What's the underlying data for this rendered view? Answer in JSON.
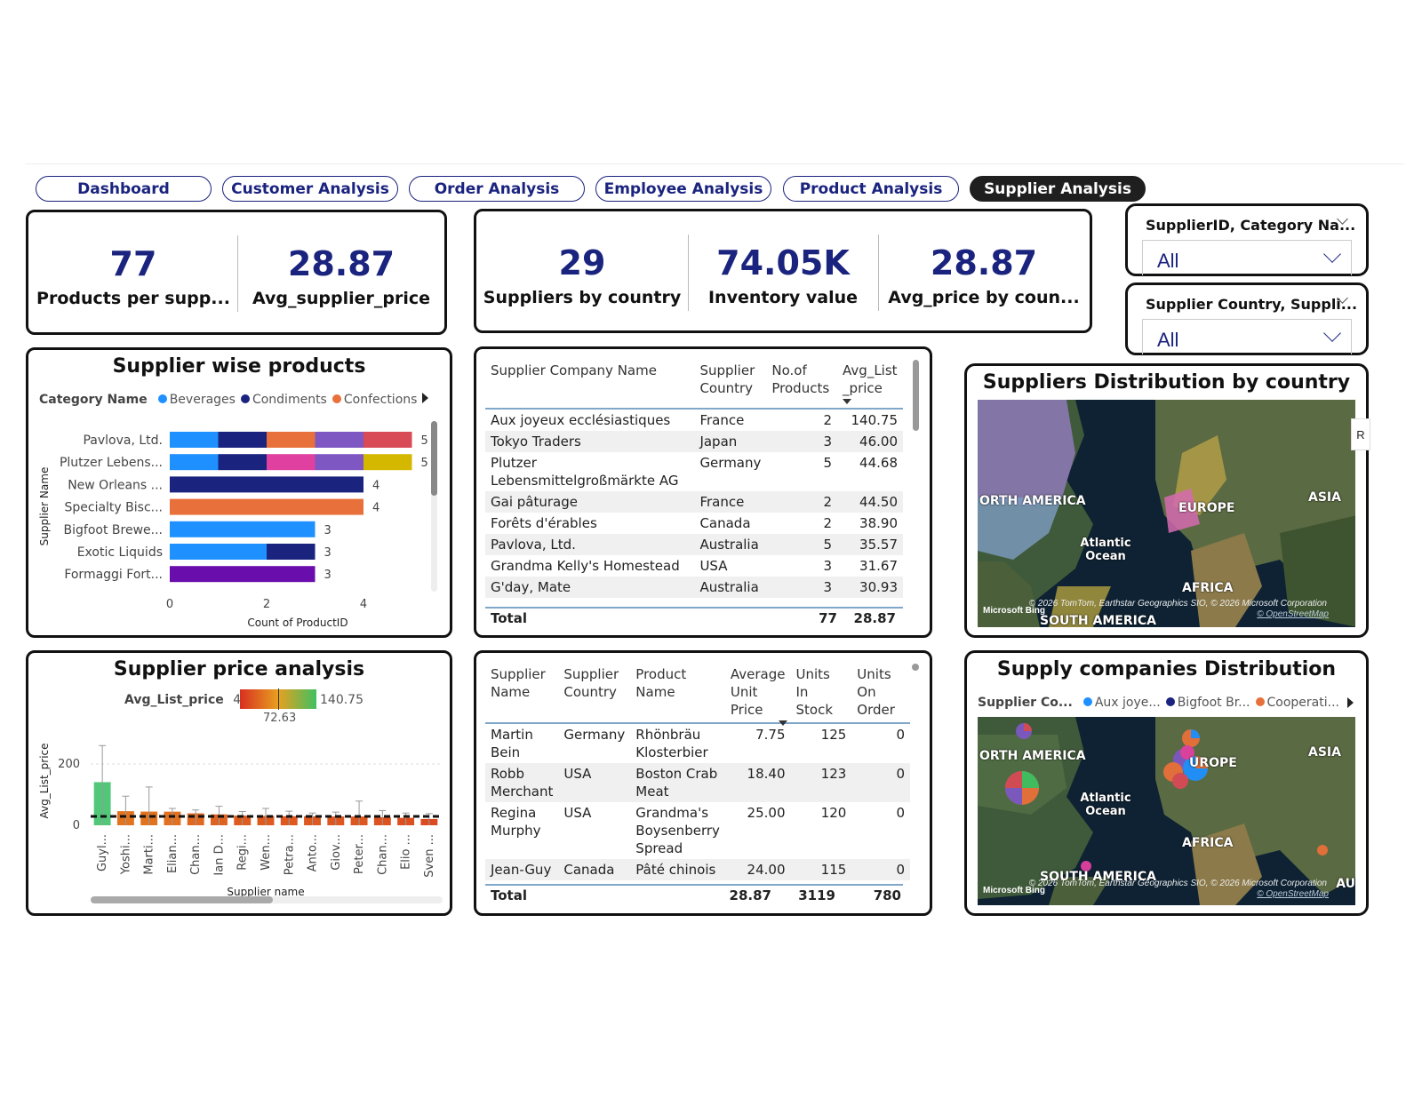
{
  "nav": {
    "tabs": [
      {
        "label": "Dashboard"
      },
      {
        "label": "Customer Analysis"
      },
      {
        "label": "Order Analysis"
      },
      {
        "label": "Employee Analysis"
      },
      {
        "label": "Product Analysis"
      },
      {
        "label": "Supplier Analysis"
      }
    ],
    "active": "Supplier Analysis"
  },
  "kpis_left": [
    {
      "value": "77",
      "label": "Products per supp..."
    },
    {
      "value": "28.87",
      "label": "Avg_supplier_price"
    }
  ],
  "kpis_mid": [
    {
      "value": "29",
      "label": "Suppliers by country"
    },
    {
      "value": "74.05K",
      "label": "Inventory value"
    },
    {
      "value": "28.87",
      "label": "Avg_price by coun..."
    }
  ],
  "slicers": [
    {
      "title": "SupplierID, Category Na...",
      "value": "All"
    },
    {
      "title": "Supplier Country, Suppli...",
      "value": "All"
    }
  ],
  "supplier_products": {
    "title": "Supplier wise products",
    "legend_title": "Category Name",
    "legend": [
      {
        "name": "Beverages",
        "color": "#1e90ff"
      },
      {
        "name": "Condiments",
        "color": "#1a237e"
      },
      {
        "name": "Confections",
        "color": "#e8703a"
      }
    ],
    "y_axis_label": "Supplier Name",
    "x_axis_label": "Count of ProductID"
  },
  "price_analysis": {
    "title": "Supplier price analysis",
    "gradient_label": "Avg_List_price",
    "gradient_min": "4.50",
    "gradient_max": "140.75",
    "gradient_mid": "72.63",
    "y_axis_label": "Avg_List_price",
    "x_axis_label": "Supplier name"
  },
  "supplier_table": {
    "headers": [
      "Supplier Company Name",
      "Supplier Country",
      "No.of Products",
      "Avg_List _price"
    ],
    "rows": [
      [
        "Aux joyeux ecclésiastiques",
        "France",
        "2",
        "140.75"
      ],
      [
        "Tokyo Traders",
        "Japan",
        "3",
        "46.00"
      ],
      [
        "Plutzer Lebensmittelgroßmärkte AG",
        "Germany",
        "5",
        "44.68"
      ],
      [
        "Gai pâturage",
        "France",
        "2",
        "44.50"
      ],
      [
        "Forêts d'érables",
        "Canada",
        "2",
        "38.90"
      ],
      [
        "Pavlova, Ltd.",
        "Australia",
        "5",
        "35.57"
      ],
      [
        "Grandma Kelly's Homestead",
        "USA",
        "3",
        "31.67"
      ],
      [
        "G'day, Mate",
        "Australia",
        "3",
        "30.93"
      ]
    ],
    "total_label": "Total",
    "total_products": "77",
    "total_avg": "28.87"
  },
  "product_table": {
    "headers": [
      "Supplier Name",
      "Supplier Country",
      "Product Name",
      "Average Unit Price",
      "Units In Stock",
      "Units On Order"
    ],
    "rows": [
      [
        "Martin Bein",
        "Germany",
        "Rhönbräu Klosterbier",
        "7.75",
        "125",
        "0"
      ],
      [
        "Robb Merchant",
        "USA",
        "Boston Crab Meat",
        "18.40",
        "123",
        "0"
      ],
      [
        "Regina Murphy",
        "USA",
        "Grandma's Boysenberry Spread",
        "25.00",
        "120",
        "0"
      ],
      [
        "Jean-Guy",
        "Canada",
        "Pâté chinois",
        "24.00",
        "115",
        "0"
      ]
    ],
    "total_label": "Total",
    "total_price": "28.87",
    "total_stock": "3119",
    "total_order": "780"
  },
  "map1": {
    "title": "Suppliers Distribution by country",
    "labels": {
      "na": "ORTH AMERICA",
      "europe": "EUROPE",
      "asia": "ASIA",
      "atlantic": "Atlantic Ocean",
      "africa": "AFRICA",
      "sa": "SOUTH AMERICA"
    },
    "credits": "© 2026 TomTom, Earthstar Geographics SIO, © 2026 Microsoft Corporation",
    "osm": "© OpenStreetMap",
    "bing": "Microsoft Bing",
    "side_tab": "R"
  },
  "map2": {
    "title": "Supply companies Distribution",
    "legend_title": "Supplier Co...",
    "legend": [
      {
        "name": "Aux joye...",
        "color": "#1e90ff"
      },
      {
        "name": "Bigfoot Br...",
        "color": "#1a237e"
      },
      {
        "name": "Cooperati...",
        "color": "#e8703a"
      }
    ],
    "labels": {
      "na": "ORTH AMERICA",
      "europe": "UROPE",
      "asia": "ASIA",
      "atlantic": "Atlantic Ocean",
      "africa": "AFRICA",
      "sa": "SOUTH AMERICA",
      "au": "AU"
    },
    "credits": "© 2026 TomTom, Earthstar Geographics SIO, © 2026 Microsoft Corporation",
    "osm": "© OpenStreetMap",
    "bing": "Microsoft Bing"
  },
  "chart_data": [
    {
      "type": "bar",
      "orientation": "horizontal-stacked",
      "title": "Supplier wise products",
      "xlabel": "Count of ProductID",
      "ylabel": "Supplier Name",
      "xlim": [
        0,
        5
      ],
      "x_ticks": [
        "0",
        "2",
        "4"
      ],
      "categories": [
        "Pavlova, Ltd.",
        "Plutzer Lebens...",
        "New Orleans ...",
        "Specialty Bisc...",
        "Bigfoot Brewe...",
        "Exotic Liquids",
        "Formaggi Fort..."
      ],
      "totals": [
        5,
        5,
        4,
        4,
        3,
        3,
        3
      ],
      "segments": [
        [
          {
            "v": 1,
            "c": "#1e90ff"
          },
          {
            "v": 1,
            "c": "#1a237e"
          },
          {
            "v": 1,
            "c": "#e8703a"
          },
          {
            "v": 1,
            "c": "#7e57c2"
          },
          {
            "v": 1,
            "c": "#d84a55"
          }
        ],
        [
          {
            "v": 1,
            "c": "#1e90ff"
          },
          {
            "v": 1,
            "c": "#1a237e"
          },
          {
            "v": 1,
            "c": "#e040a0"
          },
          {
            "v": 1,
            "c": "#7e57c2"
          },
          {
            "v": 1,
            "c": "#d4b800"
          }
        ],
        [
          {
            "v": 4,
            "c": "#1a237e"
          }
        ],
        [
          {
            "v": 4,
            "c": "#e8703a"
          }
        ],
        [
          {
            "v": 3,
            "c": "#1e90ff"
          }
        ],
        [
          {
            "v": 2,
            "c": "#1e90ff"
          },
          {
            "v": 1,
            "c": "#1a237e"
          }
        ],
        [
          {
            "v": 3,
            "c": "#6a0dad"
          }
        ]
      ]
    },
    {
      "type": "bar",
      "title": "Supplier price analysis",
      "xlabel": "Supplier name",
      "ylabel": "Avg_List_price",
      "ylim": [
        -20,
        300
      ],
      "y_ticks": [
        "0",
        "200"
      ],
      "reference_line": 28.87,
      "categories": [
        "Guyl...",
        "Yoshi...",
        "Marti...",
        "Elian...",
        "Chan...",
        "Ian D...",
        "Regi...",
        "Wen...",
        "Petra...",
        "Anto...",
        "Giov...",
        "Peter...",
        "Chan...",
        "Elio ...",
        "Sven ..."
      ],
      "values": [
        140.75,
        46,
        44.68,
        44.5,
        38.9,
        35.57,
        31.67,
        30.93,
        29.71,
        29.5,
        28.75,
        28.5,
        26.2,
        24.25,
        20.5
      ],
      "error_high": [
        260,
        95,
        125,
        55,
        50,
        62,
        45,
        55,
        46,
        40,
        43,
        79,
        48,
        40,
        38
      ]
    }
  ]
}
